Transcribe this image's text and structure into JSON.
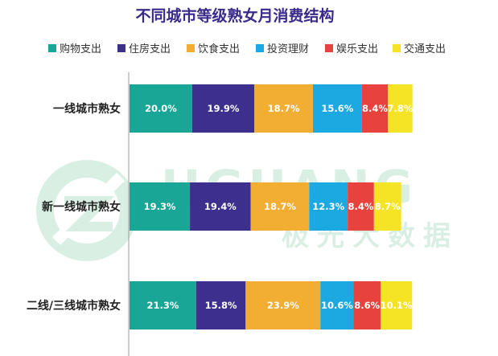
{
  "chart_data": {
    "type": "bar",
    "orientation": "horizontal",
    "stacked": true,
    "title": "不同城市等级熟女月消费结构",
    "categories": [
      "一线城市熟女",
      "新一线城市熟女",
      "二线/三线城市熟女"
    ],
    "series": [
      {
        "name": "购物支出",
        "color": "#1aa697",
        "values": [
          20.0,
          19.3,
          21.3
        ],
        "labels": [
          "20.0%",
          "19.3%",
          "21.3%"
        ]
      },
      {
        "name": "住房支出",
        "color": "#3d2f8e",
        "values": [
          19.9,
          19.4,
          15.8
        ],
        "labels": [
          "19.9%",
          "19.4%",
          "15.8%"
        ]
      },
      {
        "name": "饮食支出",
        "color": "#f2ae33",
        "values": [
          18.7,
          18.7,
          23.9
        ],
        "labels": [
          "18.7%",
          "18.7%",
          "23.9%"
        ]
      },
      {
        "name": "投资理财",
        "color": "#1ca9e1",
        "values": [
          15.6,
          12.3,
          10.6
        ],
        "labels": [
          "15.6%",
          "12.3%",
          "10.6%"
        ]
      },
      {
        "name": "娱乐支出",
        "color": "#e8423f",
        "values": [
          8.4,
          8.4,
          8.6
        ],
        "labels": [
          "8.4%",
          "8.4%",
          "8.6%"
        ]
      },
      {
        "name": "交通支出",
        "color": "#f5e326",
        "values": [
          7.8,
          8.7,
          10.1
        ],
        "labels": [
          "7.8%",
          "8.7%",
          "10.1%"
        ]
      }
    ],
    "legend_position": "top",
    "grid": false
  },
  "watermark": {
    "text_latin": "JIGUANG",
    "text_cn": "极光大数据",
    "icon": "jiguang-logo-icon"
  }
}
